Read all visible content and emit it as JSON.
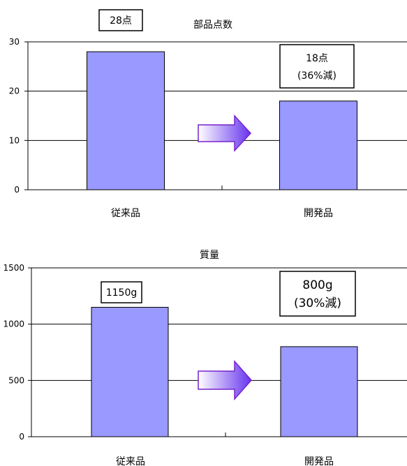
{
  "chart_data": [
    {
      "type": "bar",
      "title": "部品点数",
      "categories": [
        "従来品",
        "開発品"
      ],
      "values": [
        28,
        18
      ],
      "ylim": [
        0,
        30
      ],
      "yticks": [
        0,
        10,
        20,
        30
      ],
      "grid": true,
      "bar_color": "#9999ff",
      "annotations": [
        {
          "text": "28点",
          "category": "従来品"
        },
        {
          "text": "18点",
          "category": "開発品"
        },
        {
          "text": "(36%減)",
          "category": "開発品"
        }
      ]
    },
    {
      "type": "bar",
      "title": "質量",
      "categories": [
        "従来品",
        "開発品"
      ],
      "values": [
        1150,
        800
      ],
      "ylim": [
        0,
        1500
      ],
      "yticks": [
        0,
        500,
        1000,
        1500
      ],
      "grid": true,
      "bar_color": "#9999ff",
      "annotations": [
        {
          "text": "1150g",
          "category": "従来品"
        },
        {
          "text": "800g",
          "category": "開発品"
        },
        {
          "text": "(30%減)",
          "category": "開発品"
        }
      ]
    }
  ],
  "colors": {
    "bar": "#9999ff",
    "arrow_start": "#ffffff",
    "arrow_end": "#6633ee",
    "arrow_stroke": "#7722cc"
  }
}
